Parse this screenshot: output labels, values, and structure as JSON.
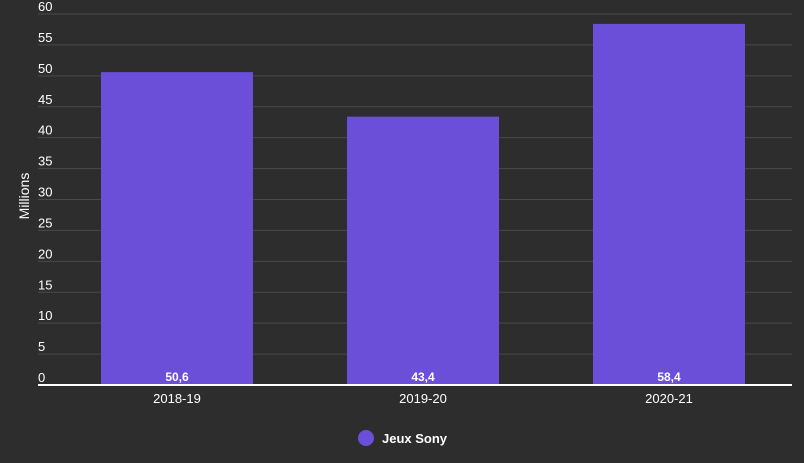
{
  "chart_data": {
    "type": "bar",
    "title": "",
    "xlabel": "",
    "ylabel": "Millions",
    "ylim": [
      0,
      60
    ],
    "yticks": [
      0,
      5,
      10,
      15,
      20,
      25,
      30,
      35,
      40,
      45,
      50,
      55,
      60
    ],
    "categories": [
      "2018-19",
      "2019-20",
      "2020-21"
    ],
    "series": [
      {
        "name": "Jeux Sony",
        "values": [
          50.6,
          43.4,
          58.4
        ],
        "labels": [
          "50,6",
          "43,4",
          "58,4"
        ]
      }
    ],
    "grid": true,
    "legend": "bottom-center",
    "colors": {
      "background": "#2d2d2d",
      "bar": "#6b4fd8",
      "grid": "#4a4a4a",
      "text": "#ffffff",
      "axis": "#ffffff"
    }
  }
}
